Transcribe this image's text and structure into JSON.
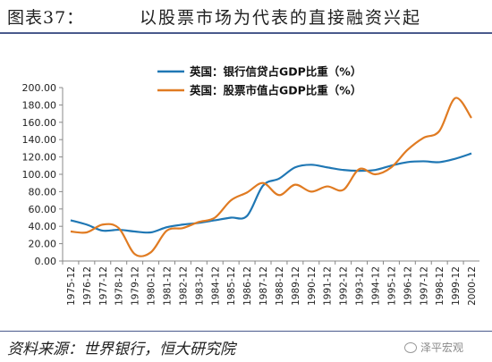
{
  "header": {
    "figure_label": "图表37：",
    "title": "以股票市场为代表的直接融资兴起"
  },
  "footer": {
    "source": "资料来源：世界银行，恒大研究院",
    "watermark": "泽平宏观",
    "watermark_icon": "wechat-icon"
  },
  "colors": {
    "bank_credit": "#1f77b4",
    "market_cap": "#e07b22",
    "rule": "#4a5a8c"
  },
  "chart_data": {
    "type": "line",
    "categories": [
      "1975-12",
      "1976-12",
      "1977-12",
      "1978-12",
      "1979-12",
      "1980-12",
      "1981-12",
      "1982-12",
      "1983-12",
      "1984-12",
      "1985-12",
      "1986-12",
      "1987-12",
      "1988-12",
      "1989-12",
      "1990-12",
      "1991-12",
      "1992-12",
      "1993-12",
      "1994-12",
      "1995-12",
      "1996-12",
      "1997-12",
      "1998-12",
      "1999-12",
      "2000-12"
    ],
    "series": [
      {
        "name": "英国：银行信贷占GDP比重（%）",
        "color": "#1f77b4",
        "values": [
          47,
          42,
          35,
          36,
          34,
          33,
          39,
          42,
          44,
          47,
          50,
          52,
          87,
          95,
          108,
          111,
          108,
          105,
          104,
          105,
          110,
          114,
          115,
          114,
          118,
          124
        ]
      },
      {
        "name": "英国：股票市值占GDP比重（%）",
        "color": "#e07b22",
        "values": [
          34,
          33,
          42,
          38,
          8,
          10,
          35,
          38,
          45,
          50,
          70,
          79,
          90,
          76,
          88,
          80,
          86,
          82,
          106,
          100,
          108,
          128,
          142,
          150,
          188,
          165
        ]
      }
    ],
    "ylim": [
      0,
      200
    ],
    "yticks": [
      "0.00",
      "20.00",
      "40.00",
      "60.00",
      "80.00",
      "100.00",
      "120.00",
      "140.00",
      "160.00",
      "180.00",
      "200.00"
    ],
    "grid": false,
    "legend": "top-center"
  }
}
